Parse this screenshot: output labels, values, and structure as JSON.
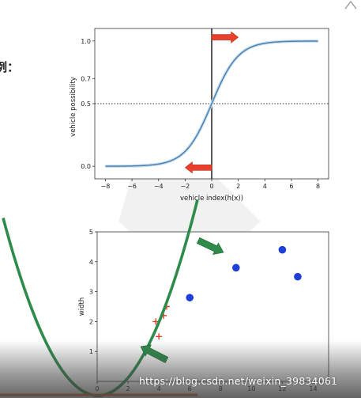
{
  "left_text_fragment": "例：",
  "watermark": "https://blog.csdn.net/weixin_39834061",
  "chart_data": [
    {
      "type": "line",
      "title": "",
      "xlabel": "vehicle index(h(x))",
      "ylabel": "vehicle possibility",
      "xlim": [
        -8.8,
        8.8
      ],
      "ylim": [
        -0.1,
        1.1
      ],
      "x_ticks": [
        -8,
        -6,
        -4,
        -2,
        0,
        2,
        4,
        6,
        8
      ],
      "x_tick_labels": [
        "−8",
        "−6",
        "−4",
        "−2",
        "0",
        "2",
        "4",
        "6",
        "8"
      ],
      "y_ticks": [
        0.0,
        0.5,
        0.7,
        1.0
      ],
      "y_tick_labels": [
        "0.0",
        "0.5",
        "0.7",
        "1.0"
      ],
      "series": [
        {
          "function": "sigmoid",
          "x_range": [
            -8,
            8
          ],
          "color": "#4c86b5"
        }
      ],
      "reference_lines": {
        "horizontal_dotted_y": 0.5,
        "vertical_solid_x": 0
      },
      "annotations": [
        {
          "type": "arrow",
          "direction": "right",
          "x_from": 0,
          "x_to": 2,
          "y": 1.03,
          "color": "#e8402a"
        },
        {
          "type": "arrow",
          "direction": "left",
          "x_from": 0,
          "x_to": -2,
          "y": -0.01,
          "color": "#e8402a"
        }
      ]
    },
    {
      "type": "scatter",
      "title": "",
      "xlabel": "",
      "ylabel": "width",
      "xlim": [
        0,
        15
      ],
      "ylim": [
        0,
        5
      ],
      "x_ticks": [
        0,
        2,
        4,
        6,
        8,
        10,
        12,
        14
      ],
      "x_tick_labels": [
        "0",
        "2",
        "4",
        "6",
        "8",
        "10",
        "12",
        "14"
      ],
      "y_ticks": [
        1,
        2,
        3,
        4,
        5
      ],
      "y_tick_labels": [
        "1",
        "2",
        "3",
        "4",
        "5"
      ],
      "series": [
        {
          "marker": "o",
          "color": "#1f3fd6",
          "points": [
            [
              6.0,
              2.8
            ],
            [
              9.0,
              3.8
            ],
            [
              12.0,
              4.4
            ],
            [
              13.0,
              3.5
            ]
          ]
        },
        {
          "marker": "+",
          "color": "#e03a2a",
          "points": [
            [
              4.5,
              2.5
            ],
            [
              4.3,
              2.2
            ],
            [
              3.8,
              2.0
            ],
            [
              4.0,
              1.5
            ]
          ]
        }
      ],
      "decision_boundary": {
        "shape": "parabola",
        "color": "#2e8b4a"
      },
      "annotations": [
        {
          "type": "arrow",
          "direction": "outward",
          "color": "#2e8b4a"
        },
        {
          "type": "arrow",
          "direction": "inward",
          "color": "#2e8b4a"
        }
      ]
    }
  ]
}
